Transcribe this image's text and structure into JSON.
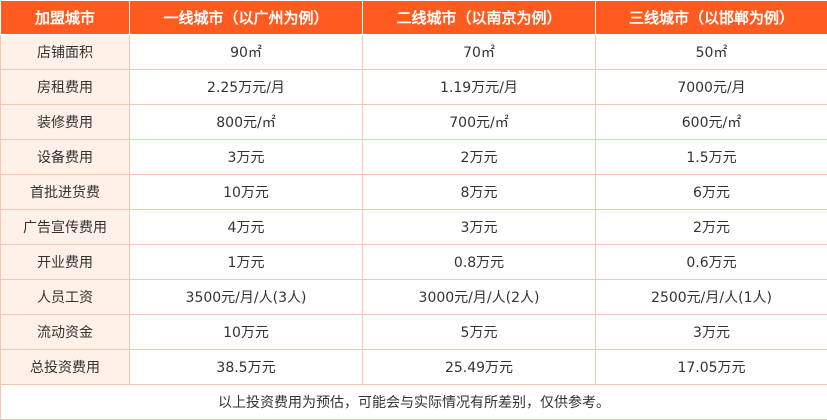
{
  "header": [
    "加盟城市",
    "一线城市（以广州为例）",
    "二线城市（以南京为例）",
    "三线城市（以邯郸为例）"
  ],
  "rows": [
    {
      "label": "店铺面积",
      "values": [
        "90㎡",
        "70㎡",
        "50㎡"
      ]
    },
    {
      "label": "房租费用",
      "values": [
        "2.25万元/月",
        "1.19万元/月",
        "7000元/月"
      ]
    },
    {
      "label": "装修费用",
      "values": [
        "800元/㎡",
        "700元/㎡",
        "600元/㎡"
      ]
    },
    {
      "label": "设备费用",
      "values": [
        "3万元",
        "2万元",
        "1.5万元"
      ]
    },
    {
      "label": "首批进货费",
      "values": [
        "10万元",
        "8万元",
        "6万元"
      ]
    },
    {
      "label": "广告宣传费用",
      "values": [
        "4万元",
        "3万元",
        "2万元"
      ]
    },
    {
      "label": "开业费用",
      "values": [
        "1万元",
        "0.8万元",
        "0.6万元"
      ]
    },
    {
      "label": "人员工资",
      "values": [
        "3500元/月/人(3人)",
        "3000元/月/人(2人)",
        "2500元/月/人(1人)"
      ]
    },
    {
      "label": "流动资金",
      "values": [
        "10万元",
        "5万元",
        "3万元"
      ]
    },
    {
      "label": "总投资费用",
      "values": [
        "38.5万元",
        "25.49万元",
        "17.05万元"
      ]
    }
  ],
  "footnote": "以上投资费用为预估，可能会与实际情况有所差别，仅供参考。"
}
